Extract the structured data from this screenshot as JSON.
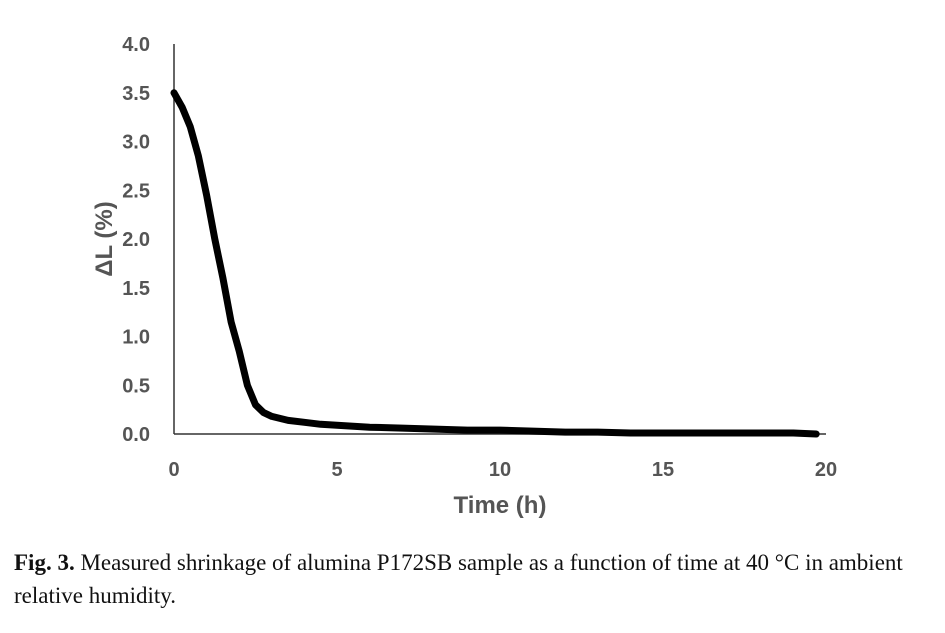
{
  "chart_data": {
    "type": "line",
    "title": "",
    "xlabel": "Time (h)",
    "ylabel": "ΔL (%)",
    "xlim": [
      0,
      20
    ],
    "ylim": [
      0,
      4.0
    ],
    "xticks": [
      "0",
      "5",
      "10",
      "15",
      "20"
    ],
    "yticks": [
      "0.0",
      "0.5",
      "1.0",
      "1.5",
      "2.0",
      "2.5",
      "3.0",
      "3.5",
      "4.0"
    ],
    "grid": false,
    "legend": "none",
    "series": [
      {
        "color": "#000000",
        "x": [
          0,
          0.25,
          0.5,
          0.75,
          1.0,
          1.25,
          1.5,
          1.75,
          2.0,
          2.25,
          2.5,
          2.75,
          3.0,
          3.25,
          3.5,
          4.0,
          4.5,
          5.0,
          6.0,
          7.0,
          8.0,
          9.0,
          10.0,
          11.0,
          12.0,
          13.0,
          14.0,
          15.0,
          16.0,
          17.0,
          18.0,
          19.0,
          19.7
        ],
        "y": [
          3.5,
          3.35,
          3.15,
          2.85,
          2.45,
          2.0,
          1.6,
          1.15,
          0.85,
          0.5,
          0.3,
          0.22,
          0.18,
          0.16,
          0.14,
          0.12,
          0.1,
          0.09,
          0.07,
          0.06,
          0.05,
          0.04,
          0.04,
          0.03,
          0.02,
          0.02,
          0.01,
          0.01,
          0.01,
          0.01,
          0.01,
          0.01,
          0.0
        ]
      }
    ]
  },
  "caption": {
    "label": "Fig. 3.",
    "text": " Measured shrinkage of alumina P172SB sample as a function of time at 40 °C in ambient relative humidity."
  }
}
